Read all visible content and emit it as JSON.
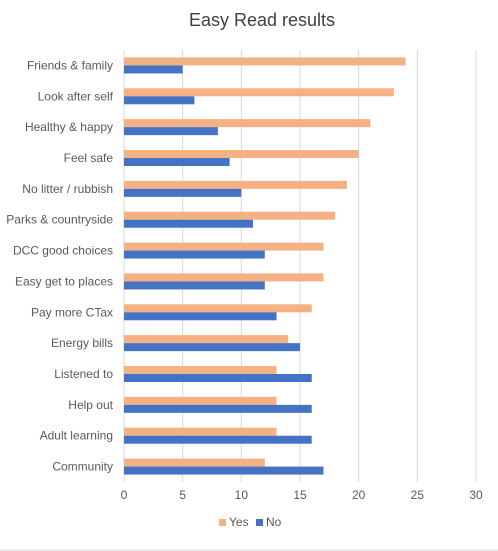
{
  "chart_data": {
    "type": "bar",
    "orientation": "horizontal",
    "title": "Easy Read results",
    "xlabel": "",
    "ylabel": "",
    "xlim": [
      0,
      30
    ],
    "xticks": [
      0,
      5,
      10,
      15,
      20,
      25,
      30
    ],
    "grid": "vertical",
    "legend_position": "bottom",
    "categories": [
      "Friends & family",
      "Look after self",
      "Healthy & happy",
      "Feel safe",
      "No litter / rubbish",
      "Parks & countryside",
      "DCC good choices",
      "Easy get to places",
      "Pay more CTax",
      "Energy bills",
      "Listened to",
      "Help out",
      "Adult learning",
      "Community"
    ],
    "series": [
      {
        "name": "Yes",
        "color": "#F4B183",
        "values": [
          24,
          23,
          21,
          20,
          19,
          18,
          17,
          17,
          16,
          14,
          13,
          13,
          13,
          12
        ]
      },
      {
        "name": "No",
        "color": "#4472C4",
        "values": [
          5,
          6,
          8,
          9,
          10,
          11,
          12,
          12,
          13,
          15,
          16,
          16,
          16,
          17
        ]
      }
    ]
  }
}
